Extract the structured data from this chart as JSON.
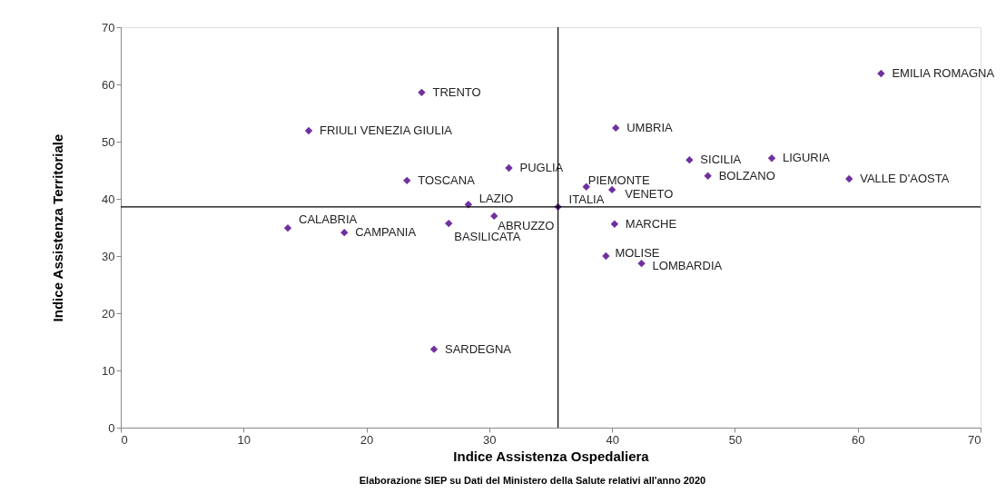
{
  "chart_data": {
    "type": "scatter",
    "xlabel": "Indice Assistenza Ospedaliera",
    "ylabel": "Indice Assistenza Territoriale",
    "xlim": [
      0,
      70
    ],
    "ylim": [
      0,
      70
    ],
    "xticks": [
      0,
      10,
      20,
      30,
      40,
      50,
      60,
      70
    ],
    "yticks": [
      0,
      10,
      20,
      30,
      40,
      50,
      60,
      70
    ],
    "grid": false,
    "legend": false,
    "marker": "diamond",
    "annotations": [
      "Elaborazione SIEP su Dati del Ministero della Salute relativi all'anno 2020"
    ],
    "ref_lines": [
      {
        "axis": "x",
        "value": 35.6,
        "color": "#000000"
      },
      {
        "axis": "y",
        "value": 38.6,
        "color": "#000000"
      }
    ],
    "series": [
      {
        "name": "EMILIA ROMAGNA",
        "color": "#7030a0",
        "x": [
          61.9
        ],
        "values": [
          61.9
        ]
      },
      {
        "name": "TRENTO",
        "color": "#7030a0",
        "x": [
          24.5
        ],
        "values": [
          58.6
        ]
      },
      {
        "name": "FRIULI VENEZIA GIULIA",
        "color": "#7030a0",
        "x": [
          15.3
        ],
        "values": [
          51.9
        ]
      },
      {
        "name": "UMBRIA",
        "color": "#7030a0",
        "x": [
          40.3
        ],
        "values": [
          52.4
        ]
      },
      {
        "name": "SICILIA",
        "color": "#7030a0",
        "x": [
          46.3
        ],
        "values": [
          46.8
        ]
      },
      {
        "name": "LIGURIA",
        "color": "#7030a0",
        "x": [
          53.0
        ],
        "values": [
          47.1
        ]
      },
      {
        "name": "PUGLIA",
        "color": "#7030a0",
        "x": [
          31.6
        ],
        "values": [
          45.4
        ]
      },
      {
        "name": "BOLZANO",
        "color": "#7030a0",
        "x": [
          47.8
        ],
        "values": [
          44.0
        ]
      },
      {
        "name": "VALLE D'AOSTA",
        "color": "#7030a0",
        "x": [
          59.3
        ],
        "values": [
          43.5
        ]
      },
      {
        "name": "TOSCANA",
        "color": "#7030a0",
        "x": [
          23.3
        ],
        "values": [
          43.2
        ]
      },
      {
        "name": "PIEMONTE",
        "color": "#7030a0",
        "x": [
          37.9
        ],
        "values": [
          42.1
        ]
      },
      {
        "name": "VENETO",
        "color": "#7030a0",
        "x": [
          40.0
        ],
        "values": [
          41.6
        ]
      },
      {
        "name": "LAZIO",
        "color": "#7030a0",
        "x": [
          28.3
        ],
        "values": [
          39.0
        ]
      },
      {
        "name": "ITALIA",
        "color": "#7030a0",
        "x": [
          35.6
        ],
        "values": [
          38.6
        ]
      },
      {
        "name": "ABRUZZO",
        "color": "#7030a0",
        "x": [
          30.4
        ],
        "values": [
          37.0
        ]
      },
      {
        "name": "BASILICATA",
        "color": "#7030a0",
        "x": [
          26.7
        ],
        "values": [
          35.7
        ]
      },
      {
        "name": "MARCHE",
        "color": "#7030a0",
        "x": [
          40.2
        ],
        "values": [
          35.6
        ]
      },
      {
        "name": "CALABRIA",
        "color": "#7030a0",
        "x": [
          13.6
        ],
        "values": [
          34.9
        ]
      },
      {
        "name": "CAMPANIA",
        "color": "#7030a0",
        "x": [
          18.2
        ],
        "values": [
          34.1
        ]
      },
      {
        "name": "MOLISE",
        "color": "#7030a0",
        "x": [
          39.5
        ],
        "values": [
          30.0
        ]
      },
      {
        "name": "LOMBARDIA",
        "color": "#7030a0",
        "x": [
          42.4
        ],
        "values": [
          28.7
        ]
      },
      {
        "name": "SARDEGNA",
        "color": "#7030a0",
        "x": [
          25.5
        ],
        "values": [
          13.7
        ]
      }
    ]
  }
}
